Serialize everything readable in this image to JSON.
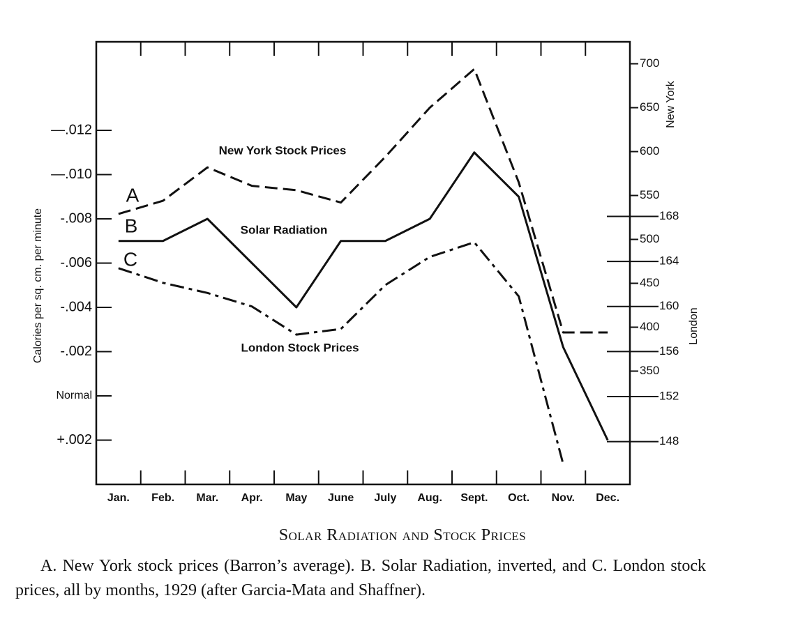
{
  "chart_data": {
    "type": "line",
    "y_label": "Calories per sq. cm. per minute",
    "y2_label": "New York",
    "y3_label": "London",
    "categories": [
      "Jan.",
      "Feb.",
      "Mar.",
      "Apr.",
      "May",
      "June",
      "July",
      "Aug.",
      "Sept.",
      "Oct.",
      "Nov.",
      "Dec."
    ],
    "ylim": [
      0.004,
      -0.016
    ],
    "yticks": [
      {
        "value": -0.012,
        "label": "—.012"
      },
      {
        "value": -0.01,
        "label": "—.010"
      },
      {
        "value": -0.008,
        "label": "-.008"
      },
      {
        "value": -0.006,
        "label": "-.006"
      },
      {
        "value": -0.004,
        "label": "-.004"
      },
      {
        "value": -0.002,
        "label": "-.002"
      },
      {
        "value": 0,
        "label": "Normal"
      },
      {
        "value": 0.002,
        "label": "+.002"
      }
    ],
    "y2lim": [
      221,
      725
    ],
    "y2ticks": [
      700,
      650,
      600,
      550,
      500,
      450,
      400,
      350
    ],
    "y3lim": [
      144.2,
      183.5
    ],
    "y3ticks": [
      168,
      164,
      160,
      156,
      152,
      148
    ],
    "series": [
      {
        "name": "New York Stock Prices",
        "marker_label": "A",
        "color": "#111111",
        "line_style": "dashed",
        "axis": "y2",
        "values": [
          529,
          544,
          582,
          561,
          556,
          542,
          594,
          650,
          694,
          565,
          394,
          394
        ]
      },
      {
        "name": "Solar Radiation",
        "marker_label": "B",
        "color": "#111111",
        "line_style": "solid",
        "values": [
          -0.007,
          -0.007,
          -0.008,
          -0.006,
          -0.004,
          -0.007,
          -0.007,
          -0.008,
          -0.011,
          -0.009,
          -0.0022,
          0.002
        ]
      },
      {
        "name": "London Stock Prices",
        "marker_label": "C",
        "color": "#111111",
        "line_style": "dashdot",
        "axis": "y3",
        "values": [
          163.4,
          162.1,
          161.2,
          160,
          157.5,
          158,
          161.9,
          164.4,
          165.7,
          160.9,
          146.0,
          null
        ]
      }
    ],
    "title": "Solar Radiation and Stock Prices",
    "caption": "A. New York stock prices (Barron’s average). B. Solar Radiation, inverted, and C. London stock prices, all by months, 1929 (after Garcia-Mata and Shaffner)."
  }
}
